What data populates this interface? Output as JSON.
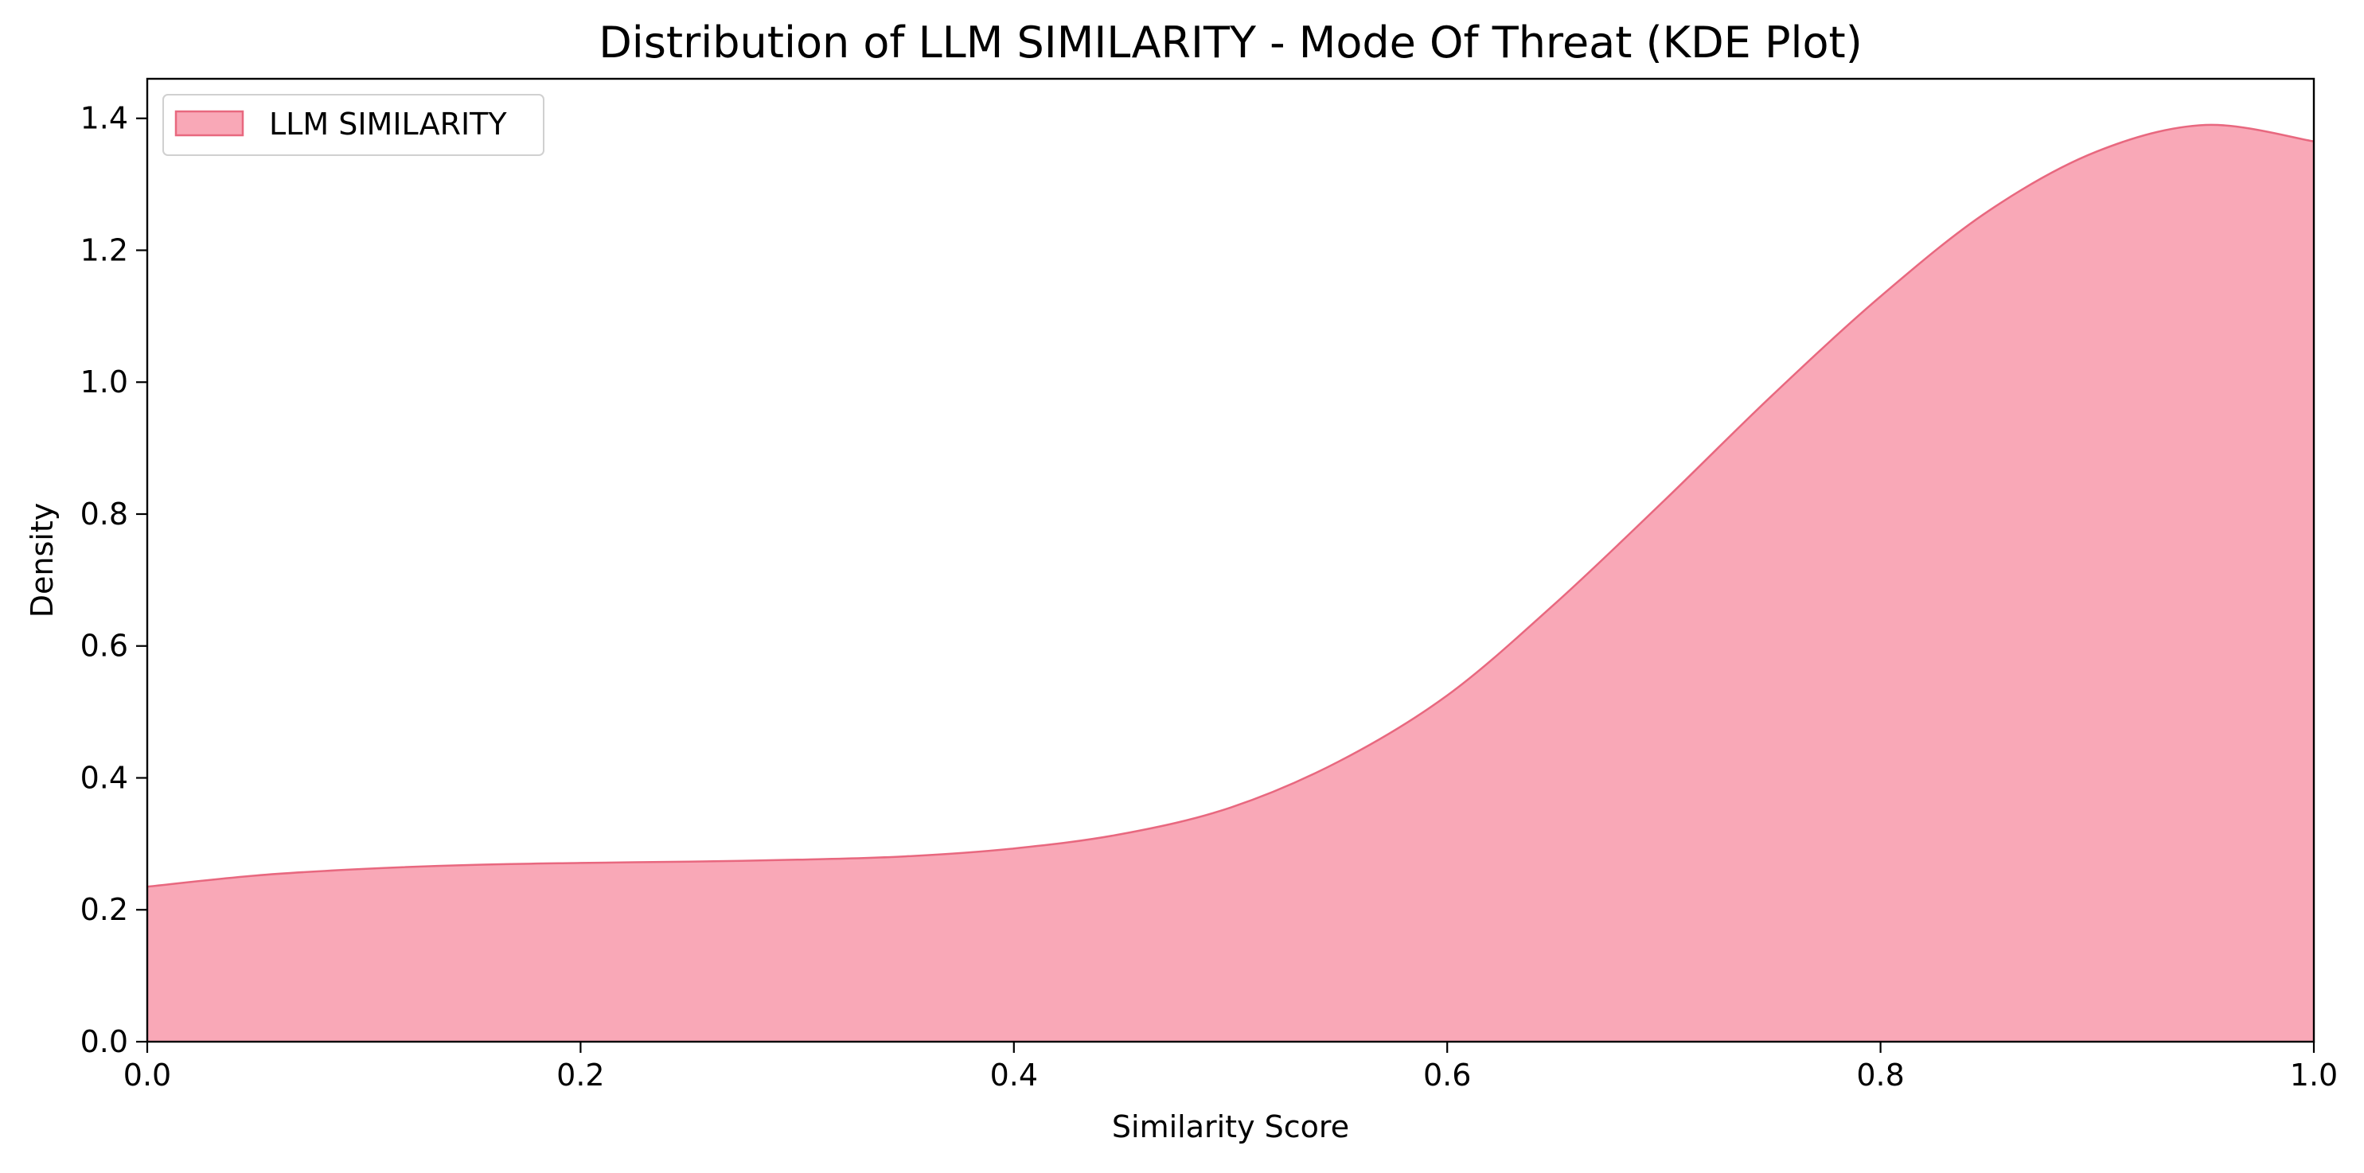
{
  "chart_data": {
    "type": "area",
    "title": "Distribution of LLM SIMILARITY - Mode Of Threat (KDE Plot)",
    "xlabel": "Similarity Score",
    "ylabel": "Density",
    "xlim": [
      0.0,
      1.0
    ],
    "ylim": [
      0.0,
      1.46
    ],
    "x_ticks": [
      0.0,
      0.2,
      0.4,
      0.6,
      0.8,
      1.0
    ],
    "x_tick_labels": [
      "0.0",
      "0.2",
      "0.4",
      "0.6",
      "0.8",
      "1.0"
    ],
    "y_ticks": [
      0.0,
      0.2,
      0.4,
      0.6,
      0.8,
      1.0,
      1.2,
      1.4
    ],
    "y_tick_labels": [
      "0.0",
      "0.2",
      "0.4",
      "0.6",
      "0.8",
      "1.0",
      "1.2",
      "1.4"
    ],
    "grid": false,
    "legend_position": "top-left",
    "series": [
      {
        "name": "LLM SIMILARITY",
        "fill_color": "#f9a8b7",
        "line_color": "#e8687f",
        "x": [
          0.0,
          0.05,
          0.1,
          0.15,
          0.2,
          0.25,
          0.3,
          0.35,
          0.4,
          0.45,
          0.5,
          0.55,
          0.6,
          0.65,
          0.7,
          0.75,
          0.8,
          0.85,
          0.9,
          0.95,
          1.0
        ],
        "y": [
          0.235,
          0.252,
          0.262,
          0.268,
          0.271,
          0.273,
          0.276,
          0.281,
          0.293,
          0.315,
          0.355,
          0.425,
          0.525,
          0.665,
          0.82,
          0.98,
          1.13,
          1.26,
          1.35,
          1.39,
          1.365
        ]
      }
    ]
  }
}
